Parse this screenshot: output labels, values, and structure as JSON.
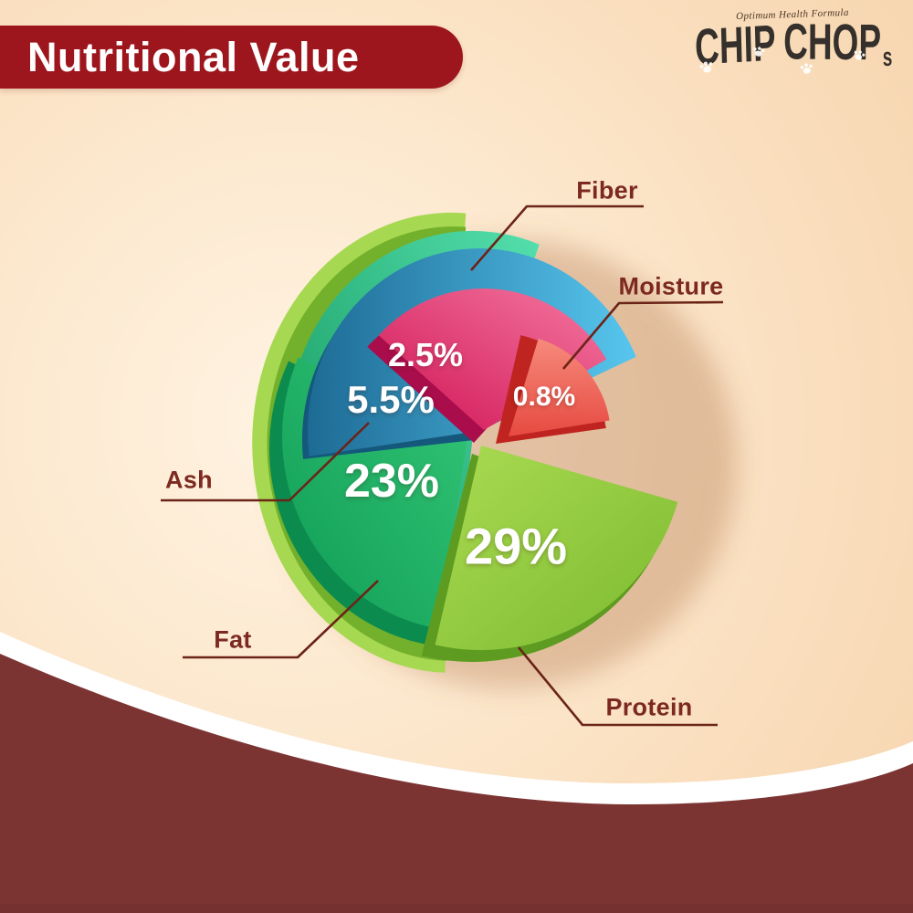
{
  "header": {
    "title": "Nutritional Value"
  },
  "logo": {
    "tagline": "Optimum Health Formula",
    "word1": "CHIP",
    "word2": "CHOP",
    "suffix": "s"
  },
  "chart_data": {
    "type": "pie",
    "style": "3d-exploded-layered",
    "title": "Nutritional Value",
    "unit": "%",
    "legend_position": "radial-callouts",
    "slices": [
      {
        "label": "Fiber",
        "value": 2.5,
        "display": "2.5%",
        "color": "#d01355"
      },
      {
        "label": "Moisture",
        "value": 0.8,
        "display": "0.8%",
        "color": "#ee5a51"
      },
      {
        "label": "Ash",
        "value": 5.5,
        "display": "5.5%",
        "color": "#2e8fc0"
      },
      {
        "label": "Fat",
        "value": 23,
        "display": "23%",
        "color": "#18a75f"
      },
      {
        "label": "Protein",
        "value": 29,
        "display": "29%",
        "color": "#8dc63f"
      }
    ]
  },
  "palette": {
    "banner_red": "#9e161d",
    "bottom_maroon": "#7c3433",
    "bottom_edge": "#6f2e2e",
    "label_maroon": "#7c2a21",
    "leader_line": "#6b2417",
    "white_band": "#ffffff",
    "logo_ink": "#35302b",
    "rim_dark": "#477a1c",
    "lime_outer": "#a6d851",
    "lime_inner": "#73b02c",
    "teal_dark": "#0e9155",
    "teal_light": "#54dfae",
    "fat_under": "#0b8c4e",
    "fat_dark": "#0f9c55",
    "fat_light": "#34c677",
    "blue_under": "#14587c",
    "blue_dark": "#1d6b95",
    "blue_light": "#57c6ee",
    "pink_under": "#a90d4b",
    "pink_dark": "#d01355",
    "pink_light": "#f478a0",
    "red_under": "#bf2420",
    "red_dark": "#e74a41",
    "red_light": "#f68a7c",
    "protein_under": "#5d9c20",
    "protein_dark": "#7cba30",
    "protein_light": "#aadb52",
    "pie_shadow": "rgba(170,105,60,0.33)"
  }
}
